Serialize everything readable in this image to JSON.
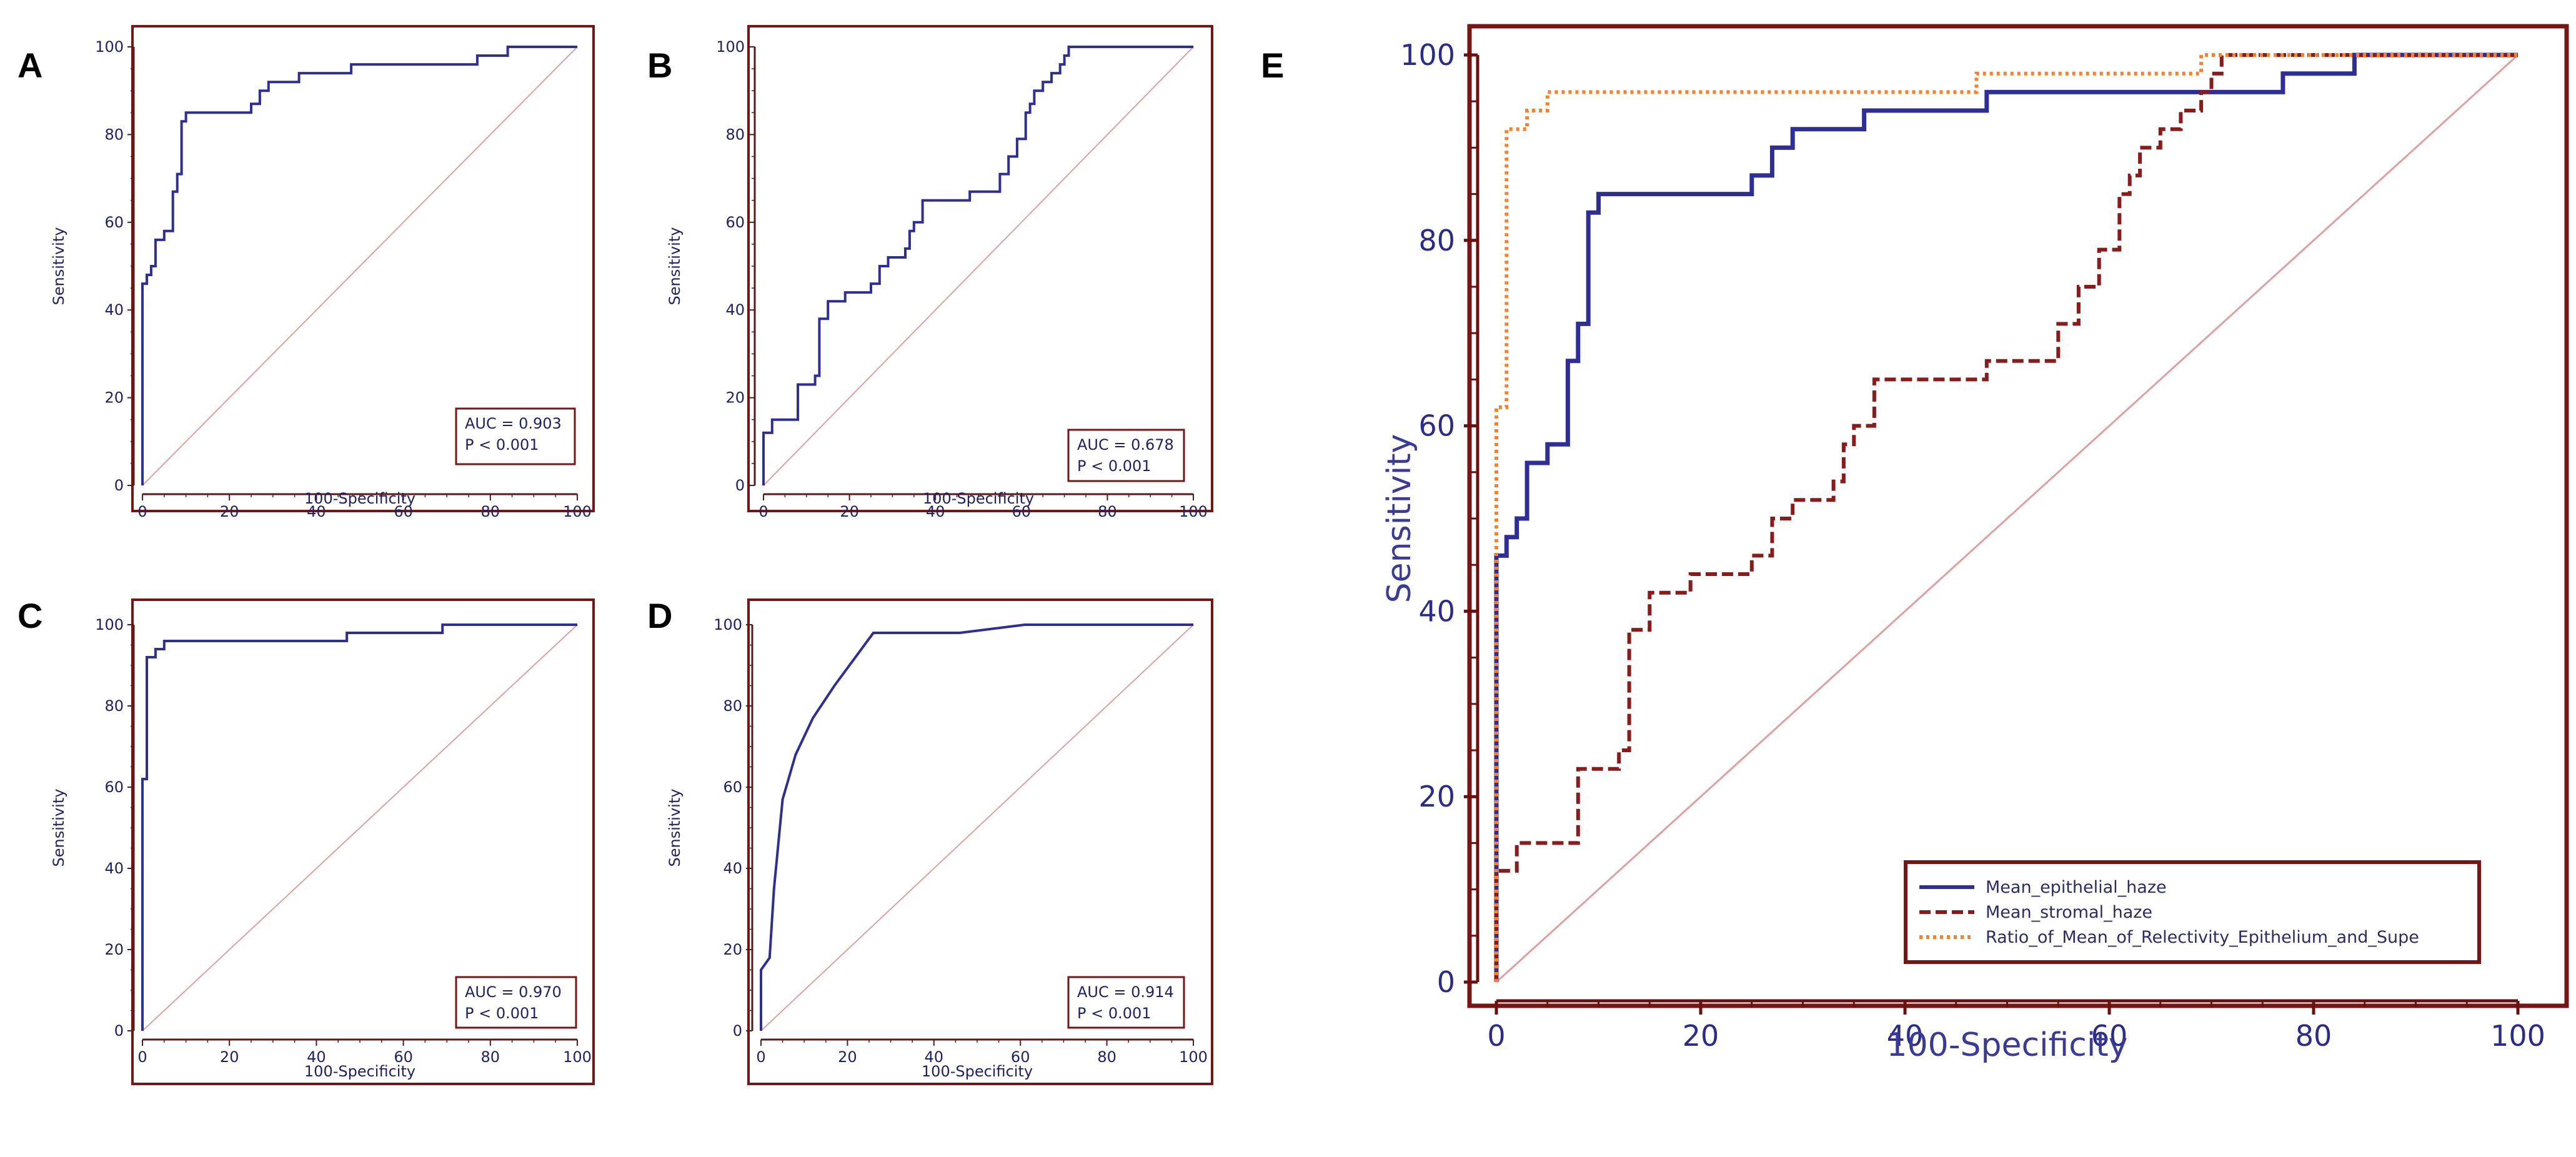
{
  "colors": {
    "frame": "#7a1414",
    "roc_blue": "#2e2e9a",
    "stromal": "#8b1a1a",
    "ratio": "#ff7f27",
    "diagonal": "#e0a0a0"
  },
  "chart_data": [
    {
      "panel": "A",
      "type": "line",
      "xlabel": "100-Specificity",
      "ylabel": "Sensitivity",
      "xlim": [
        0,
        100
      ],
      "ylim": [
        0,
        100
      ],
      "xticks": [
        0,
        20,
        40,
        60,
        80,
        100
      ],
      "yticks": [
        0,
        20,
        40,
        60,
        80,
        100
      ],
      "auc_text": "AUC = 0.903",
      "p_text": "P < 0.001",
      "series": [
        {
          "style": "solid",
          "color": "#2e2e9a",
          "x": [
            0,
            0,
            1,
            1,
            2,
            2,
            3,
            3,
            5,
            5,
            7,
            7,
            8,
            8,
            9,
            9,
            10,
            10,
            25,
            25,
            27,
            27,
            29,
            29,
            36,
            36,
            48,
            48,
            77,
            77,
            84,
            84,
            100
          ],
          "y": [
            0,
            46,
            46,
            48,
            48,
            50,
            50,
            56,
            56,
            58,
            58,
            67,
            67,
            71,
            71,
            83,
            83,
            85,
            85,
            87,
            87,
            90,
            90,
            92,
            92,
            94,
            94,
            96,
            96,
            98,
            98,
            100,
            100
          ]
        }
      ]
    },
    {
      "panel": "B",
      "type": "line",
      "xlabel": "100-Specificity",
      "ylabel": "Sensitivity",
      "xlim": [
        0,
        100
      ],
      "ylim": [
        0,
        100
      ],
      "xticks": [
        0,
        20,
        40,
        60,
        80,
        100
      ],
      "yticks": [
        0,
        20,
        40,
        60,
        80,
        100
      ],
      "auc_text": "AUC = 0.678",
      "p_text": "P < 0.001",
      "series": [
        {
          "style": "solid",
          "color": "#2e2e9a",
          "x": [
            0,
            0,
            2,
            2,
            8,
            8,
            12,
            12,
            13,
            13,
            15,
            15,
            19,
            19,
            25,
            25,
            27,
            27,
            29,
            29,
            33,
            33,
            34,
            34,
            35,
            35,
            37,
            37,
            48,
            48,
            55,
            55,
            57,
            57,
            59,
            59,
            61,
            61,
            62,
            62,
            63,
            63,
            65,
            65,
            67,
            67,
            69,
            69,
            70,
            70,
            71,
            71,
            100
          ],
          "y": [
            0,
            12,
            12,
            15,
            15,
            23,
            23,
            25,
            25,
            38,
            38,
            42,
            42,
            44,
            44,
            46,
            46,
            50,
            50,
            52,
            52,
            54,
            54,
            58,
            58,
            60,
            60,
            65,
            65,
            67,
            67,
            71,
            71,
            75,
            75,
            79,
            79,
            85,
            85,
            87,
            87,
            90,
            90,
            92,
            92,
            94,
            94,
            96,
            96,
            98,
            98,
            100,
            100
          ]
        }
      ]
    },
    {
      "panel": "C",
      "type": "line",
      "xlabel": "100-Specificity",
      "ylabel": "Sensitivity",
      "xlim": [
        0,
        100
      ],
      "ylim": [
        0,
        100
      ],
      "xticks": [
        0,
        20,
        40,
        60,
        80,
        100
      ],
      "yticks": [
        0,
        20,
        40,
        60,
        80,
        100
      ],
      "auc_text": "AUC = 0.970",
      "p_text": "P < 0.001",
      "series": [
        {
          "style": "solid",
          "color": "#2e2e9a",
          "x": [
            0,
            0,
            1,
            1,
            3,
            3,
            5,
            5,
            47,
            47,
            69,
            69,
            100
          ],
          "y": [
            0,
            62,
            62,
            92,
            92,
            94,
            94,
            96,
            96,
            98,
            98,
            100,
            100
          ]
        }
      ]
    },
    {
      "panel": "D",
      "type": "line",
      "xlabel": "100-Specificity",
      "ylabel": "Sensitivity",
      "xlim": [
        0,
        100
      ],
      "ylim": [
        0,
        100
      ],
      "xticks": [
        0,
        20,
        40,
        60,
        80,
        100
      ],
      "yticks": [
        0,
        20,
        40,
        60,
        80,
        100
      ],
      "auc_text": "AUC = 0.914",
      "p_text": "P < 0.001",
      "series": [
        {
          "style": "solid",
          "color": "#2e2e9a",
          "x": [
            0,
            0,
            2,
            3,
            5,
            8,
            12,
            17,
            26,
            46,
            61,
            100
          ],
          "y": [
            0,
            15,
            18,
            35,
            57,
            68,
            77,
            85,
            98,
            98,
            100,
            100
          ]
        }
      ]
    },
    {
      "panel": "E",
      "type": "line",
      "xlabel": "100-Specificity",
      "ylabel": "Sensitivity",
      "xlim": [
        0,
        100
      ],
      "ylim": [
        0,
        100
      ],
      "xticks": [
        0,
        20,
        40,
        60,
        80,
        100
      ],
      "yticks": [
        0,
        20,
        40,
        60,
        80,
        100
      ],
      "legend": "bottom-right",
      "series": [
        {
          "name": "Mean_epithelial_haze",
          "style": "solid",
          "color": "#2e2e9a",
          "x": [
            0,
            0,
            1,
            1,
            2,
            2,
            3,
            3,
            5,
            5,
            7,
            7,
            8,
            8,
            9,
            9,
            10,
            10,
            25,
            25,
            27,
            27,
            29,
            29,
            36,
            36,
            48,
            48,
            77,
            77,
            84,
            84,
            100
          ],
          "y": [
            0,
            46,
            46,
            48,
            48,
            50,
            50,
            56,
            56,
            58,
            58,
            67,
            67,
            71,
            71,
            83,
            83,
            85,
            85,
            87,
            87,
            90,
            90,
            92,
            92,
            94,
            94,
            96,
            96,
            98,
            98,
            100,
            100
          ]
        },
        {
          "name": "Mean_stromal_haze",
          "style": "dashed",
          "color": "#8b1a1a",
          "x": [
            0,
            0,
            2,
            2,
            8,
            8,
            12,
            12,
            13,
            13,
            15,
            15,
            19,
            19,
            25,
            25,
            27,
            27,
            29,
            29,
            33,
            33,
            34,
            34,
            35,
            35,
            37,
            37,
            48,
            48,
            55,
            55,
            57,
            57,
            59,
            59,
            61,
            61,
            62,
            62,
            63,
            63,
            65,
            65,
            67,
            67,
            69,
            69,
            70,
            70,
            71,
            71,
            100
          ],
          "y": [
            0,
            12,
            12,
            15,
            15,
            23,
            23,
            25,
            25,
            38,
            38,
            42,
            42,
            44,
            44,
            46,
            46,
            50,
            50,
            52,
            52,
            54,
            54,
            58,
            58,
            60,
            60,
            65,
            65,
            67,
            67,
            71,
            71,
            75,
            75,
            79,
            79,
            85,
            85,
            87,
            87,
            90,
            90,
            92,
            92,
            94,
            94,
            96,
            96,
            98,
            98,
            100,
            100
          ]
        },
        {
          "name": "Ratio_of_Mean_of_Relectivity_Epithelium_and_Supe",
          "style": "dotted",
          "color": "#ff7f27",
          "x": [
            0,
            0,
            1,
            1,
            3,
            3,
            5,
            5,
            47,
            47,
            69,
            69,
            100
          ],
          "y": [
            0,
            62,
            62,
            92,
            92,
            94,
            94,
            96,
            96,
            98,
            98,
            100,
            100
          ]
        }
      ]
    }
  ]
}
